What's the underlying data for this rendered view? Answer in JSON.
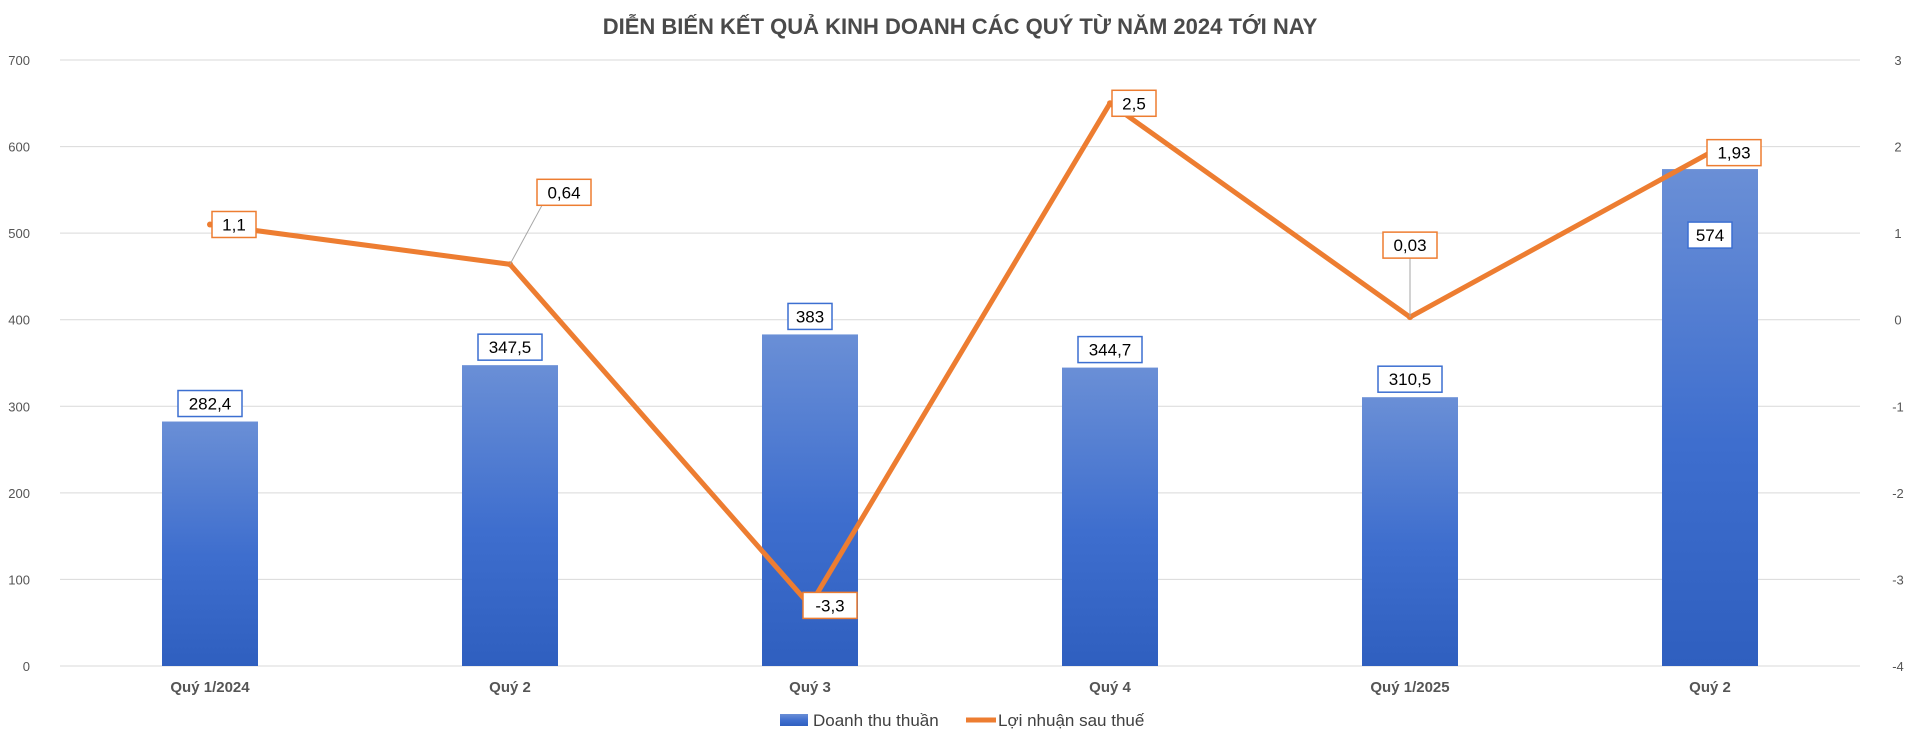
{
  "chart_data": {
    "type": "bar",
    "title": "DIỄN BIẾN KẾT QUẢ KINH DOANH CÁC QUÝ TỪ NĂM 2024 TỚI NAY",
    "categories": [
      "Quý 1/2024",
      "Quý 2",
      "Quý 3",
      "Quý 4",
      "Quý 1/2025",
      "Quý 2"
    ],
    "series": [
      {
        "name": "Doanh thu thuần",
        "type": "bar",
        "axis": "left",
        "values": [
          282.4,
          347.5,
          383,
          344.7,
          310.5,
          574
        ],
        "labels": [
          "282,4",
          "347,5",
          "383",
          "344,7",
          "310,5",
          "574"
        ],
        "color": "#3c6fd1"
      },
      {
        "name": "Lợi nhuận sau thuế",
        "type": "line",
        "axis": "right",
        "values": [
          1.1,
          0.64,
          -3.3,
          2.5,
          0.03,
          1.93
        ],
        "labels": [
          "1,1",
          "0,64",
          "-3,3",
          "2,5",
          "0,03",
          "1,93"
        ],
        "color": "#ed7d31"
      }
    ],
    "ylim_left": [
      0,
      700
    ],
    "yticks_left": [
      "0",
      "100",
      "200",
      "300",
      "400",
      "500",
      "600",
      "700"
    ],
    "ylim_right": [
      -4,
      3
    ],
    "yticks_right": [
      "-4",
      "-3",
      "-2",
      "-1",
      "0",
      "1",
      "2",
      "3"
    ],
    "grid": true,
    "legend_position": "bottom"
  }
}
